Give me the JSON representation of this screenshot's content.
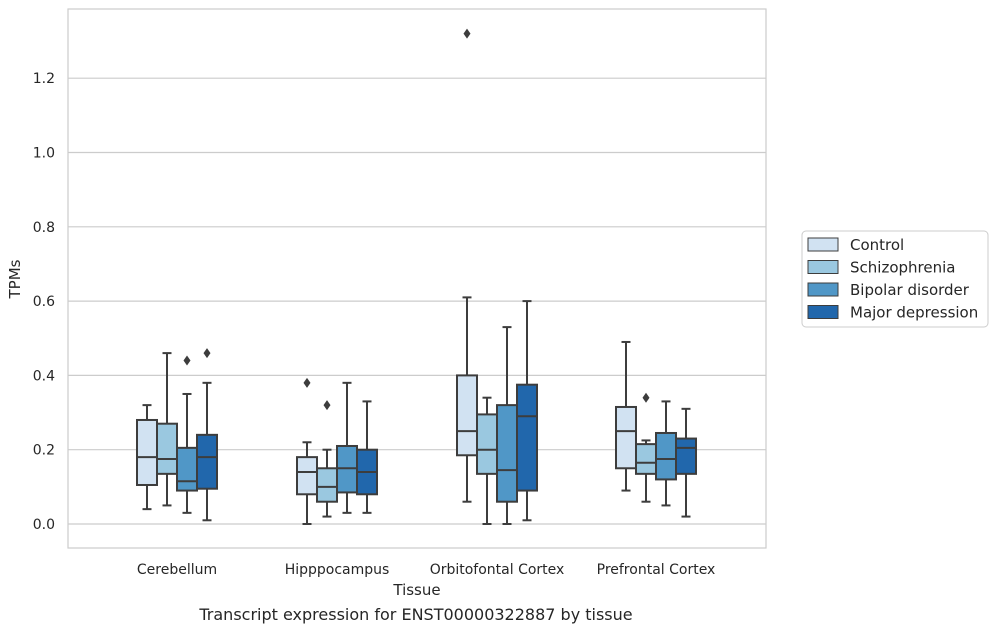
{
  "caption": "Transcript expression for ENST00000322887 by tissue",
  "chart_data": {
    "type": "boxplot",
    "xlabel": "Tissue",
    "ylabel": "TPMs",
    "categories": [
      "Cerebellum",
      "Hipppocampus",
      "Orbitofontal Cortex",
      "Prefrontal Cortex"
    ],
    "yticks": [
      "0.0",
      "0.2",
      "0.4",
      "0.6",
      "0.8",
      "1.0",
      "1.2"
    ],
    "ylim": [
      -0.065,
      1.39
    ],
    "grid": "horizontal",
    "legend_position": "right",
    "series": [
      {
        "name": "Control",
        "color": "#d1e2f2",
        "boxes": [
          {
            "whislo": 0.04,
            "q1": 0.105,
            "med": 0.18,
            "q3": 0.28,
            "whishi": 0.32,
            "fliers": []
          },
          {
            "whislo": 0.0,
            "q1": 0.08,
            "med": 0.14,
            "q3": 0.18,
            "whishi": 0.22,
            "fliers": [
              0.38
            ]
          },
          {
            "whislo": 0.06,
            "q1": 0.185,
            "med": 0.25,
            "q3": 0.4,
            "whishi": 0.61,
            "fliers": [
              1.32
            ]
          },
          {
            "whislo": 0.09,
            "q1": 0.15,
            "med": 0.25,
            "q3": 0.315,
            "whishi": 0.49,
            "fliers": []
          }
        ]
      },
      {
        "name": "Schizophrenia",
        "color": "#9ac8e0",
        "boxes": [
          {
            "whislo": 0.05,
            "q1": 0.135,
            "med": 0.175,
            "q3": 0.27,
            "whishi": 0.46,
            "fliers": []
          },
          {
            "whislo": 0.02,
            "q1": 0.06,
            "med": 0.1,
            "q3": 0.15,
            "whishi": 0.2,
            "fliers": [
              0.32
            ]
          },
          {
            "whislo": 0.0,
            "q1": 0.135,
            "med": 0.2,
            "q3": 0.295,
            "whishi": 0.34,
            "fliers": []
          },
          {
            "whislo": 0.06,
            "q1": 0.135,
            "med": 0.165,
            "q3": 0.215,
            "whishi": 0.225,
            "fliers": [
              0.34
            ]
          }
        ]
      },
      {
        "name": "Bipolar disorder",
        "color": "#5097c7",
        "boxes": [
          {
            "whislo": 0.03,
            "q1": 0.09,
            "med": 0.115,
            "q3": 0.205,
            "whishi": 0.35,
            "fliers": [
              0.44
            ]
          },
          {
            "whislo": 0.03,
            "q1": 0.085,
            "med": 0.15,
            "q3": 0.21,
            "whishi": 0.38,
            "fliers": []
          },
          {
            "whislo": 0.0,
            "q1": 0.06,
            "med": 0.145,
            "q3": 0.32,
            "whishi": 0.53,
            "fliers": []
          },
          {
            "whislo": 0.05,
            "q1": 0.12,
            "med": 0.175,
            "q3": 0.245,
            "whishi": 0.33,
            "fliers": []
          }
        ]
      },
      {
        "name": "Major depression",
        "color": "#2167ac",
        "boxes": [
          {
            "whislo": 0.01,
            "q1": 0.095,
            "med": 0.18,
            "q3": 0.24,
            "whishi": 0.38,
            "fliers": [
              0.46
            ]
          },
          {
            "whislo": 0.03,
            "q1": 0.08,
            "med": 0.14,
            "q3": 0.2,
            "whishi": 0.33,
            "fliers": []
          },
          {
            "whislo": 0.01,
            "q1": 0.09,
            "med": 0.29,
            "q3": 0.375,
            "whishi": 0.6,
            "fliers": []
          },
          {
            "whislo": 0.02,
            "q1": 0.135,
            "med": 0.205,
            "q3": 0.23,
            "whishi": 0.31,
            "fliers": []
          }
        ]
      }
    ]
  }
}
